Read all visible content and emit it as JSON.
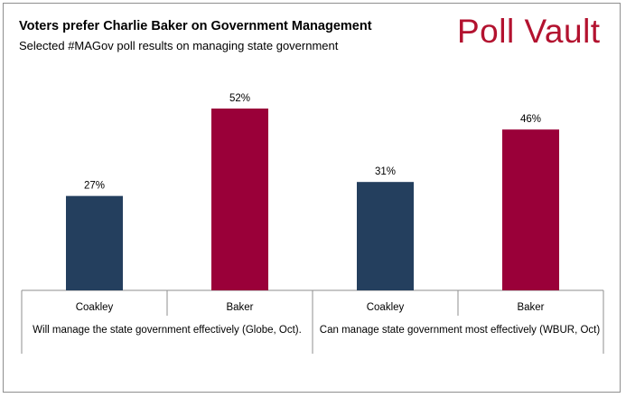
{
  "header": {
    "title": "Voters prefer Charlie Baker on Government Management",
    "subtitle": "Selected #MAGov poll results on managing state government",
    "brand": "Poll Vault"
  },
  "colors": {
    "coakley": "#243f5e",
    "baker": "#9a0039",
    "brand": "#b3122f"
  },
  "chart_data": {
    "type": "bar",
    "title": "Voters prefer Charlie Baker on Government Management",
    "subtitle": "Selected #MAGov poll results on managing state government",
    "groups": [
      {
        "label": "Will manage the state government effectively (Globe, Oct).",
        "bars": [
          {
            "category": "Coakley",
            "value": 27,
            "label": "27%",
            "color": "#243f5e"
          },
          {
            "category": "Baker",
            "value": 52,
            "label": "52%",
            "color": "#9a0039"
          }
        ]
      },
      {
        "label": "Can manage state government most effectively (WBUR, Oct)",
        "bars": [
          {
            "category": "Coakley",
            "value": 31,
            "label": "31%",
            "color": "#243f5e"
          },
          {
            "category": "Baker",
            "value": 46,
            "label": "46%",
            "color": "#9a0039"
          }
        ]
      }
    ],
    "ylim": [
      0,
      60
    ],
    "grid": false,
    "legend": "none"
  }
}
